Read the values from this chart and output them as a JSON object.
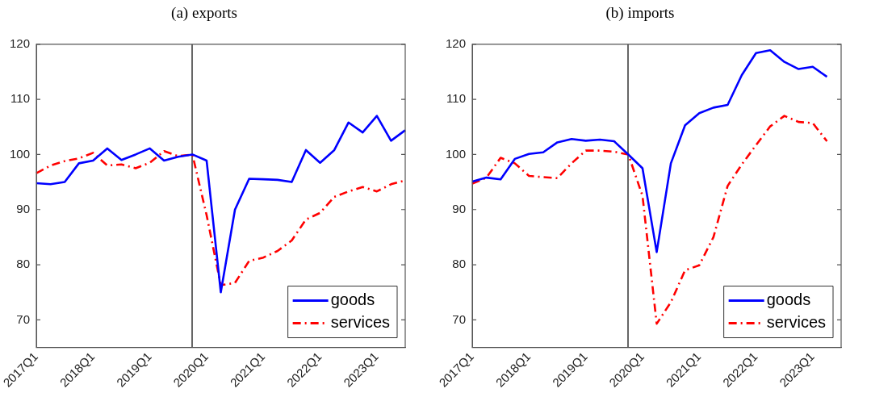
{
  "chart_data": [
    {
      "type": "line",
      "title": "(a) exports",
      "categories": [
        "2017Q1",
        null,
        null,
        null,
        "2018Q1",
        null,
        null,
        null,
        "2019Q1",
        null,
        null,
        null,
        "2020Q1",
        null,
        null,
        null,
        "2021Q1",
        null,
        null,
        null,
        "2022Q1",
        null,
        null,
        null,
        "2023Q1",
        null,
        null
      ],
      "ylim": [
        65,
        120
      ],
      "yticks": [
        70,
        80,
        90,
        100,
        110,
        120
      ],
      "series": [
        {
          "name": "goods",
          "color": "#0000ff",
          "line_style": "solid",
          "values": [
            94.8,
            94.6,
            95.0,
            98.4,
            98.9,
            101.1,
            99.0,
            100.0,
            101.1,
            98.9,
            99.6,
            100.0,
            98.9,
            75.0,
            90.0,
            95.6,
            95.5,
            95.4,
            95.0,
            100.8,
            98.5,
            100.8,
            105.8,
            104.0,
            107.0,
            102.5,
            104.4
          ]
        },
        {
          "name": "services",
          "color": "#ff0000",
          "line_style": "dashed",
          "values": [
            96.6,
            98.0,
            98.8,
            99.3,
            100.3,
            98.0,
            98.2,
            97.5,
            98.5,
            100.6,
            99.7,
            100.0,
            89.0,
            76.3,
            76.7,
            80.7,
            81.3,
            82.5,
            84.4,
            88.2,
            89.4,
            92.3,
            93.3,
            94.1,
            93.3,
            94.6,
            95.3
          ]
        }
      ],
      "legend": "bottom right",
      "grid": false,
      "marker": "none"
    },
    {
      "type": "line",
      "title": "(b) imports",
      "categories": [
        "2017Q1",
        null,
        null,
        null,
        "2018Q1",
        null,
        null,
        null,
        "2019Q1",
        null,
        null,
        null,
        "2020Q1",
        null,
        null,
        null,
        "2021Q1",
        null,
        null,
        null,
        "2022Q1",
        null,
        null,
        null,
        "2023Q1",
        null,
        null
      ],
      "ylim": [
        65,
        120
      ],
      "yticks": [
        70,
        80,
        90,
        100,
        110,
        120
      ],
      "series": [
        {
          "name": "goods",
          "color": "#0000ff",
          "line_style": "solid",
          "values": [
            95.1,
            95.8,
            95.5,
            99.2,
            100.1,
            100.4,
            102.2,
            102.8,
            102.5,
            102.7,
            102.4,
            100.0,
            97.5,
            82.3,
            98.4,
            105.3,
            107.5,
            108.5,
            109.0,
            114.4,
            118.4,
            118.9,
            116.8,
            115.5,
            115.9,
            114.1,
            null
          ]
        },
        {
          "name": "services",
          "color": "#ff0000",
          "line_style": "dashed",
          "values": [
            94.7,
            95.8,
            99.4,
            98.4,
            96.1,
            95.9,
            95.7,
            98.4,
            100.7,
            100.7,
            100.5,
            100.0,
            92.5,
            69.3,
            73.2,
            79.0,
            79.9,
            85.0,
            94.3,
            98.2,
            101.7,
            105.1,
            107.0,
            105.9,
            105.7,
            102.4,
            null
          ]
        }
      ],
      "legend": "bottom right",
      "grid": false,
      "marker": "none"
    }
  ]
}
